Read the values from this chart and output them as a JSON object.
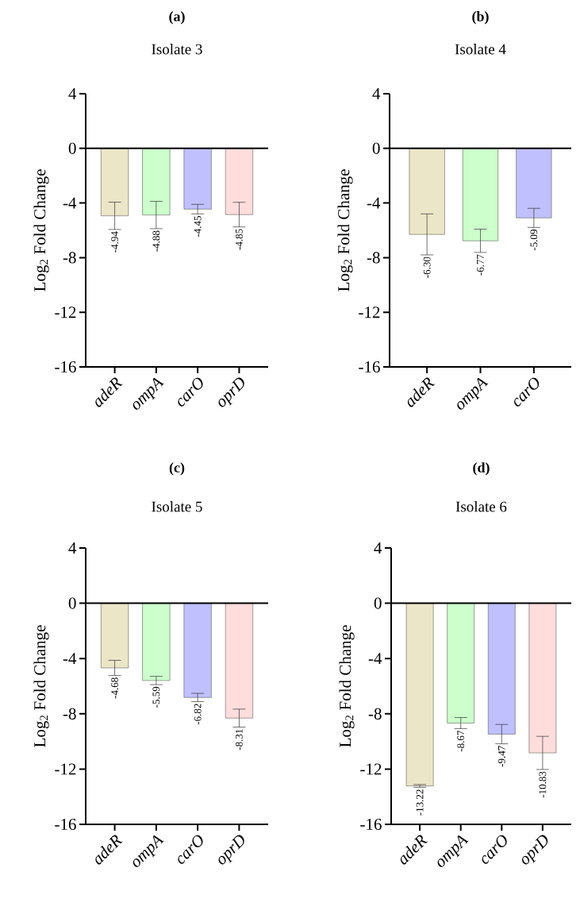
{
  "chart_data": [
    {
      "type": "bar",
      "title": "(a)",
      "subtitle": "Isolate 3",
      "ylabel": "Log$_{2}$ Fold Change",
      "categories": [
        "adeR",
        "ompA",
        "carO",
        "oprD"
      ],
      "values": [
        -4.94,
        -4.88,
        -4.45,
        -4.85
      ],
      "colors": [
        "#ece6c8",
        "#ccffcc",
        "#c0c0ff",
        "#ffdddd"
      ],
      "errors": [
        1.0,
        1.0,
        0.35,
        0.9
      ],
      "value_labels": [
        "-4.94",
        "-4.88",
        "-4.45",
        "-4.85"
      ],
      "ylim": [
        -16,
        4
      ],
      "yticks": [
        -16,
        -12,
        -8,
        -4,
        0,
        4
      ],
      "ref_lines": [
        {
          "axis": "y",
          "value": 0
        }
      ]
    },
    {
      "type": "bar",
      "title": "(b)",
      "subtitle": "Isolate 4",
      "ylabel": "Log$_{2}$ Fold Change",
      "categories": [
        "adeR",
        "ompA",
        "carO"
      ],
      "values": [
        -6.3,
        -6.77,
        -5.09
      ],
      "colors": [
        "#ece6c8",
        "#ccffcc",
        "#c0c0ff"
      ],
      "errors": [
        1.5,
        0.85,
        0.7
      ],
      "value_labels": [
        "-6.30",
        "-6.77",
        "-5.09"
      ],
      "ylim": [
        -16,
        4
      ],
      "yticks": [
        -16,
        -12,
        -8,
        -4,
        0,
        4
      ],
      "ref_lines": [
        {
          "axis": "y",
          "value": 0
        }
      ]
    },
    {
      "type": "bar",
      "title": "(c)",
      "subtitle": "Isolate 5",
      "ylabel": "Log$_{2}$ Fold Change",
      "categories": [
        "adeR",
        "ompA",
        "carO",
        "oprD"
      ],
      "values": [
        -4.68,
        -5.59,
        -6.82,
        -8.31
      ],
      "colors": [
        "#ece6c8",
        "#ccffcc",
        "#c0c0ff",
        "#ffdddd"
      ],
      "errors": [
        0.55,
        0.3,
        0.3,
        0.65
      ],
      "value_labels": [
        "-4.68",
        "-5.59",
        "-6.82",
        "-8.31"
      ],
      "ylim": [
        -16,
        4
      ],
      "yticks": [
        -16,
        -12,
        -8,
        -4,
        0,
        4
      ],
      "ref_lines": [
        {
          "axis": "y",
          "value": 0
        }
      ]
    },
    {
      "type": "bar",
      "title": "(d)",
      "subtitle": "Isolate 6",
      "ylabel": "Log$_{2}$ Fold Change",
      "categories": [
        "adeR",
        "ompA",
        "carO",
        "oprD"
      ],
      "values": [
        -13.22,
        -8.67,
        -9.47,
        -10.83
      ],
      "colors": [
        "#ece6c8",
        "#ccffcc",
        "#c0c0ff",
        "#ffdddd"
      ],
      "errors": [
        0.1,
        0.4,
        0.7,
        1.2
      ],
      "value_labels": [
        "-13.22",
        "-8.67",
        "-9.47",
        "-10.83"
      ],
      "ylim": [
        -16,
        4
      ],
      "yticks": [
        -16,
        -12,
        -8,
        -4,
        0,
        4
      ],
      "ref_lines": [
        {
          "axis": "y",
          "value": 0
        }
      ]
    }
  ]
}
